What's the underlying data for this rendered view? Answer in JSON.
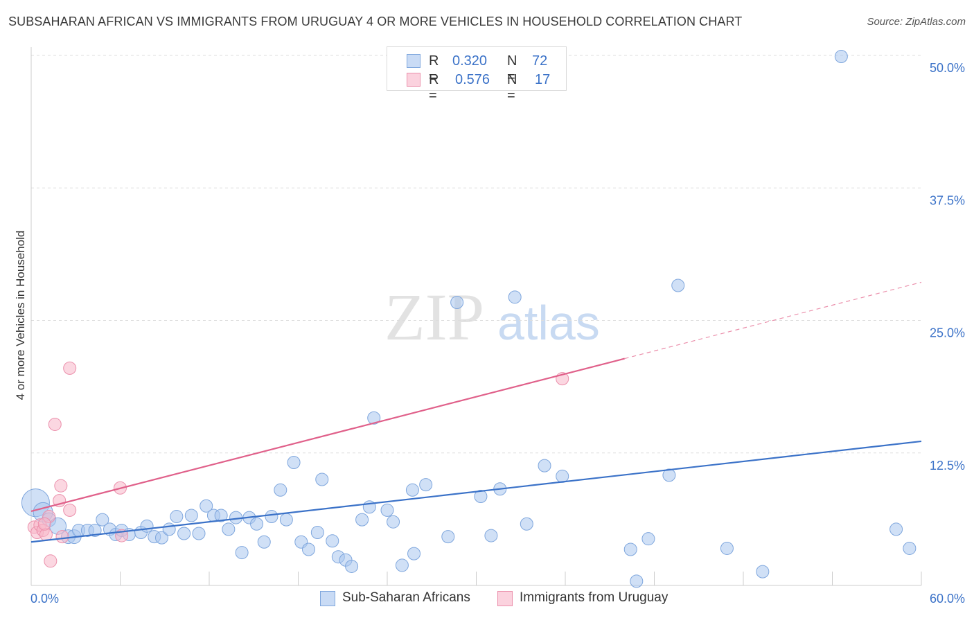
{
  "title": "SUBSAHARAN AFRICAN VS IMMIGRANTS FROM URUGUAY 4 OR MORE VEHICLES IN HOUSEHOLD CORRELATION CHART",
  "source": "Source: ZipAtlas.com",
  "watermark": {
    "zip": "ZIP",
    "atlas": "atlas"
  },
  "legend": {
    "rows": [
      {
        "r_label": "R =",
        "r_value": "0.320",
        "n_label": "N =",
        "n_value": "72",
        "color": "#a9c6ee"
      },
      {
        "r_label": "R =",
        "r_value": "0.576",
        "n_label": "N =",
        "n_value": "17",
        "color": "#f7b6c8"
      }
    ]
  },
  "bottom_legend": [
    {
      "label": "Sub-Saharan Africans",
      "color": "#a9c6ee"
    },
    {
      "label": "Immigrants from Uruguay",
      "color": "#f7b6c8"
    }
  ],
  "chart_data": {
    "type": "scatter",
    "xlabel": "",
    "ylabel": "4 or more Vehicles in Household",
    "xlim": [
      0,
      60
    ],
    "ylim": [
      0,
      50
    ],
    "x_tick_labels": [
      "0.0%",
      "60.0%"
    ],
    "y_ticks": [
      12.5,
      25.0,
      37.5,
      50.0
    ],
    "y_tick_labels": [
      "12.5%",
      "25.0%",
      "37.5%",
      "50.0%"
    ],
    "grid": true,
    "colors": {
      "blue": "#3b72c8",
      "pink": "#e0608a",
      "tick_text": "#3b72c8"
    },
    "series": [
      {
        "name": "Sub-Saharan Africans",
        "color": "#a9c6ee",
        "stroke": "#7ea6dd",
        "points": [
          [
            0.3,
            7.8,
            20
          ],
          [
            0.8,
            6.9,
            14
          ],
          [
            1.2,
            6.2,
            10
          ],
          [
            1.8,
            5.6,
            12
          ],
          [
            2.5,
            4.6,
            10
          ],
          [
            2.9,
            4.6,
            10
          ],
          [
            3.2,
            5.2,
            9
          ],
          [
            3.8,
            5.2,
            9
          ],
          [
            4.3,
            5.2,
            9
          ],
          [
            4.8,
            6.2,
            9
          ],
          [
            5.3,
            5.3,
            9
          ],
          [
            5.7,
            4.8,
            9
          ],
          [
            6.1,
            5.2,
            9
          ],
          [
            6.6,
            4.8,
            9
          ],
          [
            7.4,
            5.0,
            9
          ],
          [
            7.8,
            5.6,
            9
          ],
          [
            8.3,
            4.6,
            9
          ],
          [
            8.8,
            4.5,
            9
          ],
          [
            9.3,
            5.3,
            9
          ],
          [
            9.8,
            6.5,
            9
          ],
          [
            10.3,
            4.9,
            9
          ],
          [
            10.8,
            6.6,
            9
          ],
          [
            11.3,
            4.9,
            9
          ],
          [
            11.8,
            7.5,
            9
          ],
          [
            12.3,
            6.6,
            9
          ],
          [
            12.8,
            6.6,
            9
          ],
          [
            13.3,
            5.3,
            9
          ],
          [
            13.8,
            6.4,
            9
          ],
          [
            14.2,
            3.1,
            9
          ],
          [
            14.7,
            6.4,
            9
          ],
          [
            15.2,
            5.8,
            9
          ],
          [
            15.7,
            4.1,
            9
          ],
          [
            16.2,
            6.5,
            9
          ],
          [
            16.8,
            9.0,
            9
          ],
          [
            17.2,
            6.2,
            9
          ],
          [
            17.7,
            11.6,
            9
          ],
          [
            18.2,
            4.1,
            9
          ],
          [
            18.7,
            3.4,
            9
          ],
          [
            19.3,
            5.0,
            9
          ],
          [
            19.6,
            10.0,
            9
          ],
          [
            20.3,
            4.2,
            9
          ],
          [
            20.7,
            2.7,
            9
          ],
          [
            21.2,
            2.4,
            9
          ],
          [
            21.6,
            1.8,
            9
          ],
          [
            22.3,
            6.2,
            9
          ],
          [
            22.8,
            7.4,
            9
          ],
          [
            23.1,
            15.8,
            9
          ],
          [
            24.0,
            7.1,
            9
          ],
          [
            24.4,
            6.0,
            9
          ],
          [
            25.0,
            1.9,
            9
          ],
          [
            25.8,
            3.0,
            9
          ],
          [
            25.7,
            9.0,
            9
          ],
          [
            26.6,
            9.5,
            9
          ],
          [
            28.1,
            4.6,
            9
          ],
          [
            28.7,
            26.7,
            9
          ],
          [
            30.3,
            8.4,
            9
          ],
          [
            31.0,
            4.7,
            9
          ],
          [
            31.6,
            9.1,
            9
          ],
          [
            32.6,
            27.2,
            9
          ],
          [
            33.4,
            5.8,
            9
          ],
          [
            34.6,
            11.3,
            9
          ],
          [
            35.8,
            10.3,
            9
          ],
          [
            40.4,
            3.4,
            9
          ],
          [
            40.8,
            0.4,
            9
          ],
          [
            41.6,
            4.4,
            9
          ],
          [
            43.0,
            10.4,
            9
          ],
          [
            43.6,
            28.3,
            9
          ],
          [
            46.9,
            3.5,
            9
          ],
          [
            49.3,
            1.3,
            9
          ],
          [
            54.6,
            49.9,
            9
          ],
          [
            58.3,
            5.3,
            9
          ],
          [
            59.2,
            3.5,
            9
          ]
        ],
        "trend": {
          "x0": 0,
          "y0": 4.1,
          "x1": 60,
          "y1": 13.6
        }
      },
      {
        "name": "Immigrants from Uruguay",
        "color": "#f7b6c8",
        "stroke": "#eb8fab",
        "points": [
          [
            0.2,
            5.5,
            9
          ],
          [
            0.4,
            5.0,
            9
          ],
          [
            0.6,
            5.7,
            9
          ],
          [
            0.8,
            5.2,
            9
          ],
          [
            1.0,
            4.8,
            9
          ],
          [
            1.2,
            6.5,
            9
          ],
          [
            1.3,
            2.3,
            9
          ],
          [
            1.6,
            15.2,
            9
          ],
          [
            1.9,
            8.0,
            9
          ],
          [
            2.0,
            9.4,
            9
          ],
          [
            2.1,
            4.6,
            9
          ],
          [
            2.6,
            7.1,
            9
          ],
          [
            2.6,
            20.5,
            9
          ],
          [
            6.0,
            9.2,
            9
          ],
          [
            6.1,
            4.7,
            9
          ],
          [
            35.8,
            19.5,
            9
          ],
          [
            0.9,
            5.8,
            9
          ]
        ],
        "trend": {
          "x0": 0,
          "y0": 7.0,
          "x1": 40,
          "y1": 21.4
        },
        "trend_dashed": {
          "x0": 40,
          "y0": 21.4,
          "x1": 60,
          "y1": 28.6
        }
      }
    ]
  }
}
